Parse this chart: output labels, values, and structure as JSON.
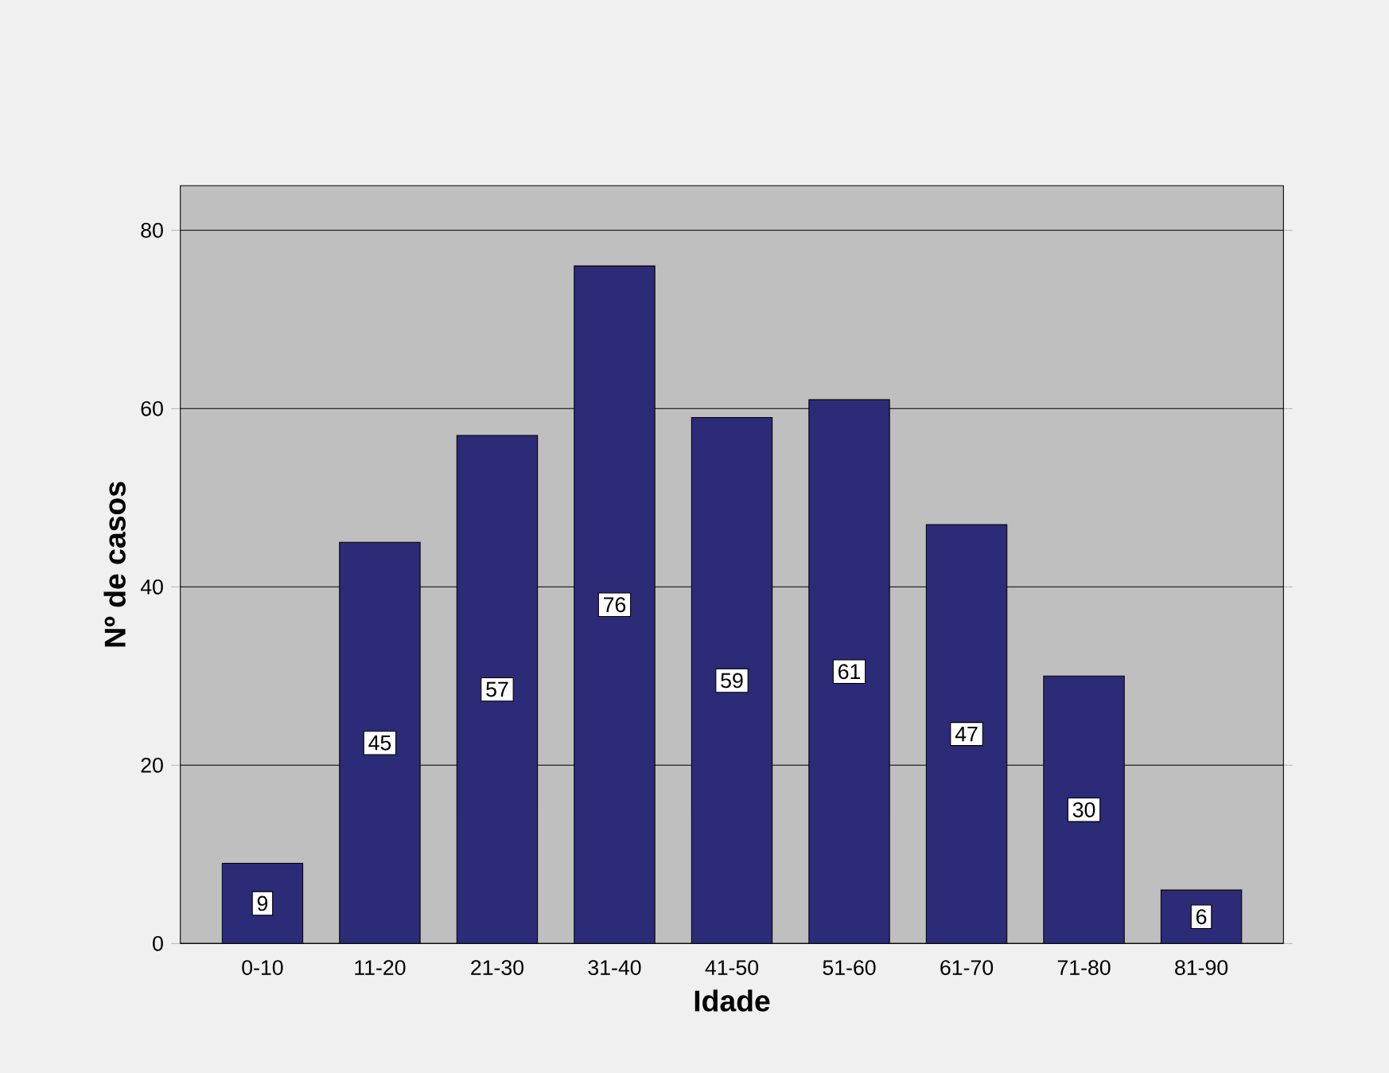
{
  "chart_data": {
    "type": "bar",
    "xlabel": "Idade",
    "ylabel": "Nº de casos",
    "categories": [
      "0-10",
      "11-20",
      "21-30",
      "31-40",
      "41-50",
      "51-60",
      "61-70",
      "71-80",
      "81-90"
    ],
    "values": [
      9,
      45,
      57,
      76,
      59,
      61,
      47,
      30,
      6
    ],
    "color": "#2b2b78",
    "ylim": [
      0,
      85
    ],
    "yticks": [
      0,
      20,
      40,
      60,
      80
    ],
    "grid": "y",
    "data_labels": true
  }
}
